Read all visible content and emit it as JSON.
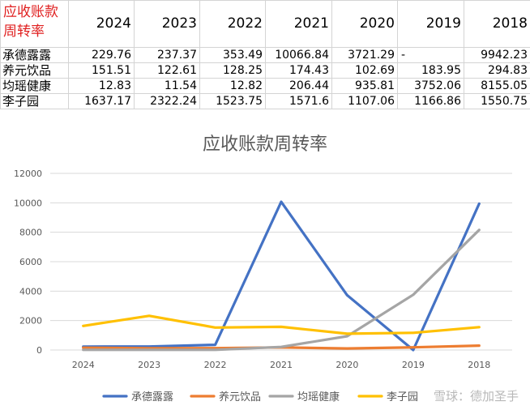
{
  "table": {
    "corner_label": "应收账款周转率",
    "years": [
      "2024",
      "2023",
      "2022",
      "2021",
      "2020",
      "2019",
      "2018"
    ],
    "rows": [
      {
        "name": "承德露露",
        "values": [
          "229.76",
          "237.37",
          "353.49",
          "10066.84",
          "3721.29",
          "-",
          "9942.23"
        ]
      },
      {
        "name": "养元饮品",
        "values": [
          "151.51",
          "122.61",
          "128.25",
          "174.43",
          "102.69",
          "183.95",
          "294.83"
        ]
      },
      {
        "name": "均瑶健康",
        "values": [
          "12.83",
          "11.54",
          "12.82",
          "206.44",
          "935.81",
          "3752.06",
          "8155.05"
        ]
      },
      {
        "name": "李子园",
        "values": [
          "1637.17",
          "2322.24",
          "1523.75",
          "1571.6",
          "1107.06",
          "1166.86",
          "1550.75"
        ]
      }
    ]
  },
  "chart_data": {
    "type": "line",
    "title": "应收账款周转率",
    "categories": [
      "2024",
      "2023",
      "2022",
      "2021",
      "2020",
      "2019",
      "2018"
    ],
    "ylim": [
      0,
      12000
    ],
    "yticks": [
      "0",
      "2000",
      "4000",
      "6000",
      "8000",
      "10000",
      "12000"
    ],
    "grid": true,
    "legend_position": "bottom",
    "series": [
      {
        "name": "承德露露",
        "color": "#4472c4",
        "values": [
          229.76,
          237.37,
          353.49,
          10066.84,
          3721.29,
          0,
          9942.23
        ]
      },
      {
        "name": "养元饮品",
        "color": "#ed7d31",
        "values": [
          151.51,
          122.61,
          128.25,
          174.43,
          102.69,
          183.95,
          294.83
        ]
      },
      {
        "name": "均瑶健康",
        "color": "#a5a5a5",
        "values": [
          12.83,
          11.54,
          12.82,
          206.44,
          935.81,
          3752.06,
          8155.05
        ]
      },
      {
        "name": "李子园",
        "color": "#ffc000",
        "values": [
          1637.17,
          2322.24,
          1523.75,
          1571.6,
          1107.06,
          1166.86,
          1550.75
        ]
      }
    ]
  },
  "watermark": "雪球：德加圣手"
}
